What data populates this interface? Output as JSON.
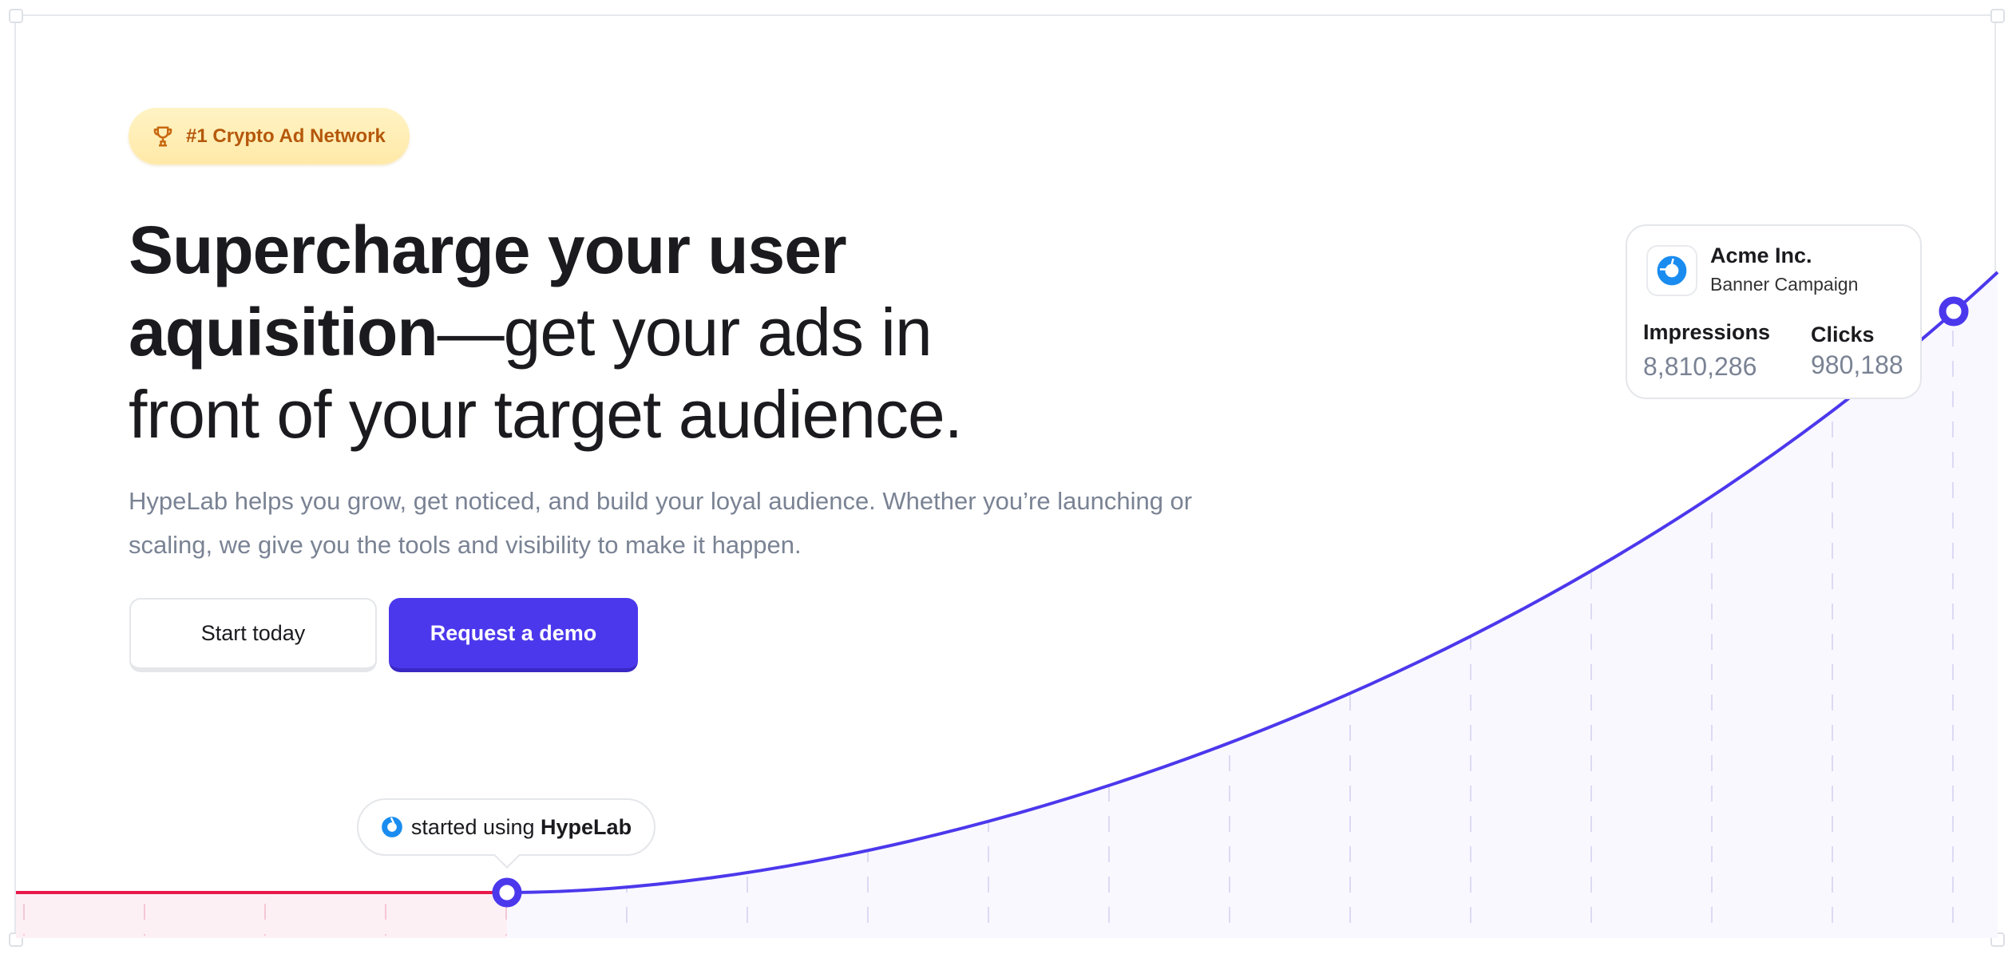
{
  "badge": {
    "icon": "trophy-icon",
    "label": "#1 Crypto Ad Network"
  },
  "hero": {
    "heading_bold_1": "Supercharge your user",
    "heading_bold_2": "aquisition",
    "heading_regular_2": "—get your ads in",
    "heading_regular_3": "front of your target audience.",
    "subtitle": "HypeLab helps you grow, get noticed, and build your loyal audience. Whether you’re launching or scaling, we give you the tools and visibility to make it happen."
  },
  "buttons": {
    "start": "Start today",
    "demo": "Request a demo"
  },
  "tooltip": {
    "prefix": "started using",
    "brand": "HypeLab",
    "icon": "hypelab-logo-icon"
  },
  "card": {
    "company": "Acme Inc.",
    "campaign": "Banner Campaign",
    "impressions_label": "Impressions",
    "impressions_value": "8,810,286",
    "clicks_label": "Clicks",
    "clicks_value": "980,188"
  },
  "colors": {
    "accent": "#4c38ec",
    "baseline": "#e8194a",
    "brand_blue": "#1a8cf0",
    "badge_text": "#b5580b"
  }
}
